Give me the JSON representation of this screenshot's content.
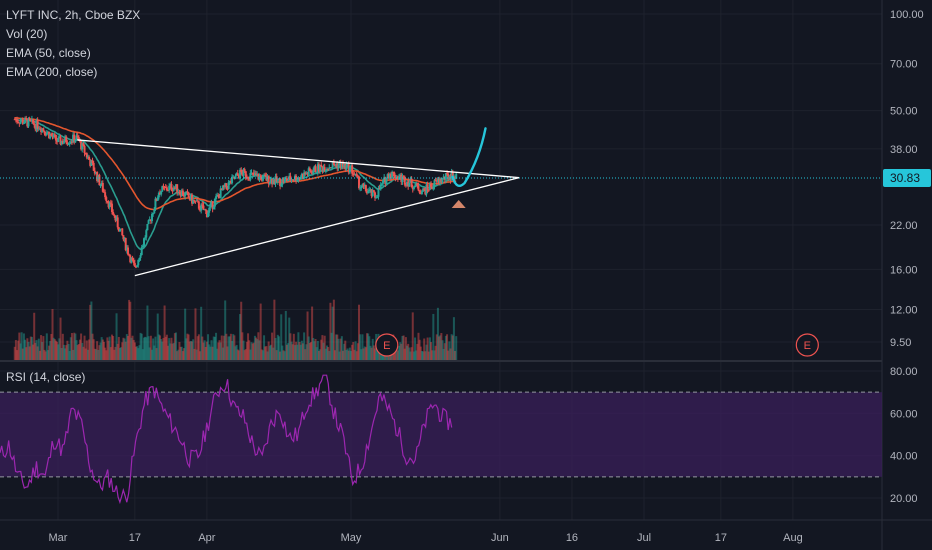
{
  "legend": {
    "title": "LYFT INC, 2h, Cboe BZX",
    "vol": "Vol (20)",
    "ema50": "EMA (50, close)",
    "ema200": "EMA (200, close)"
  },
  "rsi_legend": "RSI (14, close)",
  "colors": {
    "background": "#131722",
    "grid": "#1e222d",
    "up": "#26a69a",
    "down": "#ef5350",
    "ema50": "#2a9d8f",
    "ema200": "#e4562e",
    "rsi": "#9c27b0",
    "rsi_band": "#3a1f5a",
    "price_line": "#26c6da",
    "trendline": "#ffffff",
    "arrow": "#26c6da",
    "triangle": "#d4866a"
  },
  "chart_data": [
    {
      "type": "candlestick",
      "title": "LYFT INC, 2h, Cboe BZX",
      "y_scale": "log",
      "y_ticks": [
        "100.00",
        "70.00",
        "50.00",
        "38.00",
        "30.83",
        "22.00",
        "16.00",
        "12.00",
        "9.50"
      ],
      "last_price": "30.83",
      "x_ticks": [
        "Mar",
        "17",
        "Apr",
        "May",
        "Jun",
        "16",
        "Jul",
        "17",
        "Aug"
      ],
      "price_path": [
        [
          "Feb 20",
          47
        ],
        [
          "Feb 25",
          45
        ],
        [
          "Mar 1",
          40
        ],
        [
          "Mar 5",
          41
        ],
        [
          "Mar 8",
          34
        ],
        [
          "Mar 11",
          27
        ],
        [
          "Mar 14",
          21
        ],
        [
          "Mar 17",
          16
        ],
        [
          "Mar 19",
          20
        ],
        [
          "Mar 22",
          28
        ],
        [
          "Mar 25",
          29
        ],
        [
          "Mar 28",
          27
        ],
        [
          "Apr 1",
          24
        ],
        [
          "Apr 4",
          28
        ],
        [
          "Apr 8",
          32
        ],
        [
          "Apr 12",
          31
        ],
        [
          "Apr 16",
          30
        ],
        [
          "Apr 20",
          31
        ],
        [
          "Apr 24",
          33
        ],
        [
          "Apr 28",
          34
        ],
        [
          "May 1",
          33
        ],
        [
          "May 3",
          29
        ],
        [
          "May 6",
          27
        ],
        [
          "May 9",
          32
        ],
        [
          "May 13",
          30
        ],
        [
          "May 16",
          28
        ],
        [
          "May 19",
          30
        ],
        [
          "May 22",
          31.5
        ],
        [
          "May 23",
          30.83
        ]
      ],
      "indicators": [
        "Vol (20)",
        "EMA (50, close)",
        "EMA (200, close)"
      ],
      "earnings_markers": [
        "E",
        "E"
      ],
      "drawings": [
        {
          "type": "trendline",
          "from": [
            "Mar 5",
            40.5
          ],
          "to": [
            "Jun 5",
            30.9
          ]
        },
        {
          "type": "trendline",
          "from": [
            "Mar 17",
            15.3
          ],
          "to": [
            "Jun 5",
            30.9
          ]
        },
        {
          "type": "arrow",
          "from": [
            "May 23",
            28.5
          ],
          "to": [
            "May 29",
            44
          ]
        }
      ]
    },
    {
      "type": "line",
      "title": "RSI (14, close)",
      "ylim": [
        15,
        82
      ],
      "y_ticks": [
        "80.00",
        "60.00",
        "40.00",
        "20.00"
      ],
      "bands": [
        30,
        70
      ],
      "values": [
        40,
        45,
        30,
        25,
        35,
        30,
        48,
        42,
        62,
        55,
        35,
        25,
        30,
        22,
        20,
        45,
        65,
        72,
        62,
        55,
        48,
        38,
        40,
        55,
        70,
        75,
        62,
        58,
        45,
        38,
        55,
        62,
        48,
        50,
        65,
        70,
        78,
        60,
        48,
        28,
        35,
        50,
        68,
        62,
        52,
        40,
        38,
        55,
        65,
        58,
        55
      ]
    }
  ]
}
